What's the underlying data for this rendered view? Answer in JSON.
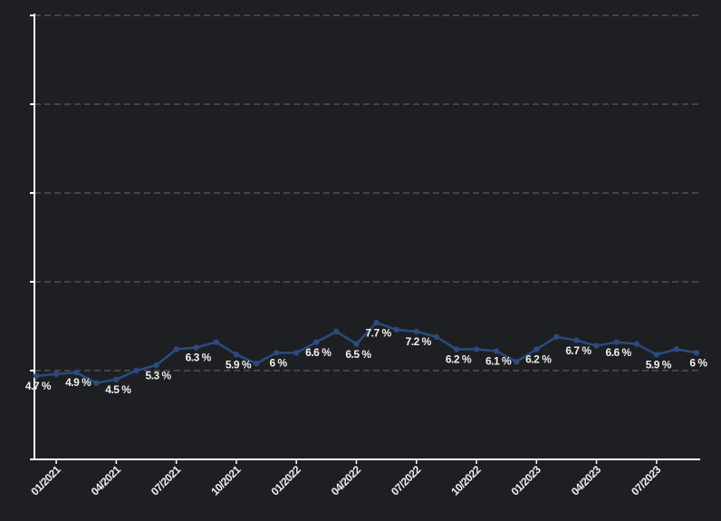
{
  "chart_data": {
    "type": "line",
    "categories": [
      null,
      "01/2021",
      null,
      null,
      "04/2021",
      null,
      null,
      "07/2021",
      null,
      null,
      "10/2021",
      null,
      null,
      "01/2022",
      null,
      null,
      "04/2022",
      null,
      null,
      "07/2022",
      null,
      null,
      "10/2022",
      null,
      null,
      "01/2023",
      null,
      null,
      "04/2023",
      null,
      null,
      "07/2023",
      null,
      null
    ],
    "values": [
      4.7,
      4.8,
      4.9,
      4.3,
      4.5,
      5.0,
      5.3,
      6.2,
      6.3,
      6.6,
      5.9,
      5.4,
      6.0,
      6.0,
      6.6,
      7.2,
      6.5,
      7.7,
      7.3,
      7.2,
      6.9,
      6.2,
      6.2,
      6.1,
      5.5,
      6.2,
      6.9,
      6.7,
      6.4,
      6.6,
      6.5,
      5.9,
      6.2,
      6.0
    ],
    "value_labels": [
      "4.7 %",
      null,
      "4.9 %",
      null,
      "4.5 %",
      null,
      "5.3 %",
      null,
      "6.3 %",
      null,
      "5.9 %",
      null,
      "6 %",
      null,
      "6.6 %",
      null,
      "6.5 %",
      "7.7 %",
      null,
      "7.2 %",
      null,
      "6.2 %",
      null,
      "6.1 %",
      null,
      "6.2 %",
      null,
      "6.7 %",
      null,
      "6.6 %",
      null,
      "5.9 %",
      null,
      "6 %"
    ],
    "color": "#2b4a80",
    "ylim": [
      0,
      25
    ],
    "yticks": [
      0,
      5,
      10,
      15,
      20,
      25
    ],
    "grid": true
  }
}
